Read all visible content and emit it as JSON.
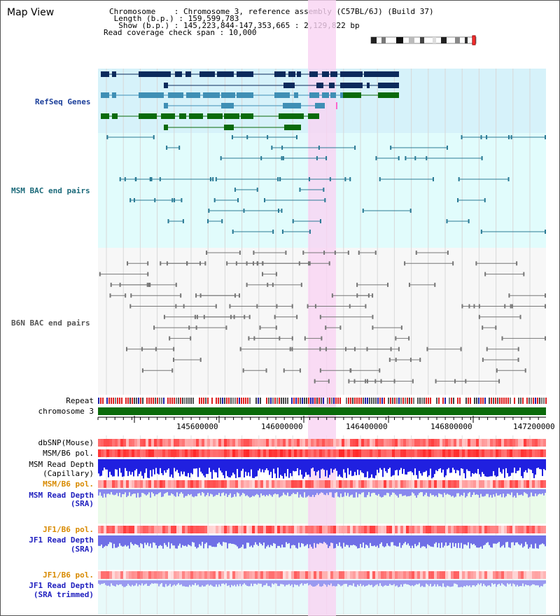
{
  "title": "Map View",
  "info": {
    "chromosome": "Chromosome    : Chromosome 3, reference assembly (C57BL/6J) (Build 37)",
    "length": " Length (b.p.) : 159,599,783",
    "show": "  Show (b.p.) : 145,223,844-147,353,665 : 2,129,822 bp",
    "coverage": "Read coverage check span : 10,000"
  },
  "tracks": {
    "refseq": "RefSeq Genes",
    "msm_bac": "MSM BAC end pairs",
    "b6n_bac": "B6N BAC end pairs",
    "repeat": "Repeat",
    "chromosome": "chromosome 3",
    "dbsnp": "dbSNP(Mouse)",
    "msm_b6_pol": "MSM/B6 pol.",
    "msm_depth_cap_1": "MSM Read Depth",
    "msm_depth_cap_2": "(Capillary)",
    "msm_b6_pol2": "MSM/B6 pol.",
    "msm_depth_sra_1": "MSM Read Depth",
    "msm_depth_sra_2": "(SRA)",
    "jf1_b6_pol": "JF1/B6 pol.",
    "jf1_depth_sra_1": "JF1 Read Depth",
    "jf1_depth_sra_2": "(SRA)",
    "jf1_b6_pol2": "JF1/B6 pol.",
    "jf1_depth_trim_1": "JF1 Read Depth",
    "jf1_depth_trim_2": "(SRA trimmed)"
  },
  "axis": {
    "ticks": [
      "145600000",
      "146000000",
      "146400000",
      "146800000",
      "147200000"
    ]
  },
  "colors": {
    "highlight": "#f9d3f3",
    "refseq_bg": "#d6f2fa",
    "msm_bg": "#e1fcfc",
    "gene_dark": "#0b2a5c",
    "gene_mid": "#3f8fb5",
    "gene_green": "#0a6a0a",
    "chromosome_bar": "#0b6b0b"
  }
}
